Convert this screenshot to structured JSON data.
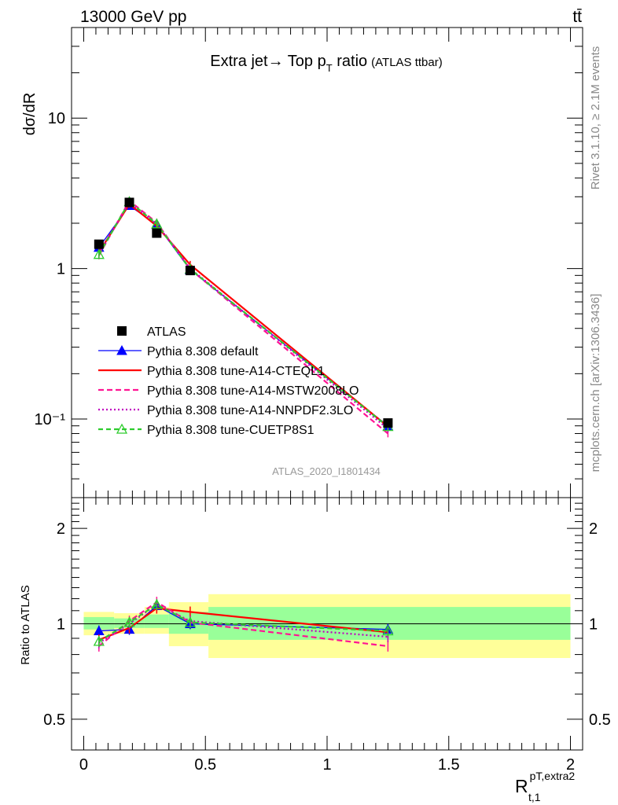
{
  "header": {
    "energy_label": "13000 GeV pp",
    "process_label": "tt̄",
    "rivet_label": "Rivet 3.1.10, ≥ 2.1M events",
    "mcplots_label": "mcplots.cern.ch [arXiv:1306.3436]",
    "analysis_id": "ATLAS_2020_I1801434"
  },
  "chart_data": [
    {
      "type": "line",
      "title": "Extra jet→ Top p",
      "title_sub": "T",
      "title_tail": " ratio",
      "title_note": "(ATLAS ttbar)",
      "ylabel": "dσ/dR",
      "y_scale": "log",
      "ylim": [
        0.03,
        40
      ],
      "xlim": [
        -0.05,
        2.05
      ],
      "y_ticks": [
        {
          "value": 10,
          "label": "10"
        },
        {
          "value": 1,
          "label": "1"
        },
        {
          "value": 0.1,
          "label": "10⁻¹"
        }
      ],
      "x": [
        0.0625,
        0.1875,
        0.3,
        0.4375,
        1.25
      ],
      "data": {
        "name": "ATLAS",
        "color": "#000000",
        "values": [
          1.45,
          2.75,
          1.72,
          0.97,
          0.094
        ]
      },
      "series": [
        {
          "name": "Pythia 8.308 default",
          "color": "#0000ff",
          "dash": "",
          "marker": "triangle-filled",
          "values": [
            1.38,
            2.62,
            1.96,
            0.98,
            0.09
          ]
        },
        {
          "name": "Pythia 8.308 tune-A14-CTEQL1",
          "color": "#ff0000",
          "dash": "",
          "marker": "none",
          "values": [
            1.28,
            2.68,
            1.92,
            1.06,
            0.089
          ]
        },
        {
          "name": "Pythia 8.308 tune-A14-MSTW2008LO",
          "color": "#ff1493",
          "dash": "7,4",
          "marker": "none",
          "values": [
            1.22,
            2.82,
            2.02,
            0.99,
            0.08
          ]
        },
        {
          "name": "Pythia 8.308 tune-A14-NNPDF2.3LO",
          "color": "#c000c0",
          "dash": "2,3",
          "marker": "none",
          "values": [
            1.25,
            2.75,
            1.98,
            1.0,
            0.086
          ]
        },
        {
          "name": "Pythia 8.308 tune-CUETP8S1",
          "color": "#2ecc2e",
          "dash": "6,4",
          "marker": "triangle-open",
          "values": [
            1.24,
            2.78,
            1.98,
            0.99,
            0.089
          ]
        }
      ]
    },
    {
      "type": "line",
      "title": "",
      "ylabel": "Ratio to ATLAS",
      "xlabel": "R",
      "xlabel_sup": "pT,extra2",
      "xlabel_sub": "t,1",
      "y_scale": "log",
      "ylim": [
        0.4,
        2.5
      ],
      "xlim": [
        -0.05,
        2.05
      ],
      "y_ticks": [
        {
          "value": 2,
          "label": "2"
        },
        {
          "value": 1,
          "label": "1"
        },
        {
          "value": 0.5,
          "label": "0.5"
        }
      ],
      "x_ticks": [
        {
          "value": 0,
          "label": "0"
        },
        {
          "value": 0.5,
          "label": "0.5"
        },
        {
          "value": 1,
          "label": "1"
        },
        {
          "value": 1.5,
          "label": "1.5"
        },
        {
          "value": 2,
          "label": "2"
        }
      ],
      "bands": [
        {
          "x0": 0.0,
          "x1": 0.125,
          "yellow": [
            0.92,
            1.09
          ],
          "green": [
            0.96,
            1.05
          ]
        },
        {
          "x0": 0.125,
          "x1": 0.25,
          "yellow": [
            0.93,
            1.08
          ],
          "green": [
            0.97,
            1.04
          ]
        },
        {
          "x0": 0.25,
          "x1": 0.35,
          "yellow": [
            0.93,
            1.13
          ],
          "green": [
            0.97,
            1.07
          ]
        },
        {
          "x0": 0.35,
          "x1": 0.5125,
          "yellow": [
            0.85,
            1.17
          ],
          "green": [
            0.93,
            1.09
          ]
        },
        {
          "x0": 0.5125,
          "x1": 2.0,
          "yellow": [
            0.78,
            1.24
          ],
          "green": [
            0.89,
            1.13
          ]
        }
      ],
      "x": [
        0.0625,
        0.1875,
        0.3,
        0.4375,
        1.25
      ],
      "series": [
        {
          "name": "Pythia 8.308 default",
          "color": "#0000ff",
          "dash": "",
          "marker": "triangle-filled",
          "values": [
            0.95,
            0.96,
            1.14,
            1.0,
            0.96
          ]
        },
        {
          "name": "Pythia 8.308 tune-A14-CTEQL1",
          "color": "#ff0000",
          "dash": "",
          "marker": "none",
          "values": [
            0.89,
            0.97,
            1.12,
            1.09,
            0.94
          ]
        },
        {
          "name": "Pythia 8.308 tune-A14-MSTW2008LO",
          "color": "#ff1493",
          "dash": "7,4",
          "marker": "none",
          "values": [
            0.85,
            1.02,
            1.17,
            1.01,
            0.85
          ]
        },
        {
          "name": "Pythia 8.308 tune-A14-NNPDF2.3LO",
          "color": "#c000c0",
          "dash": "2,3",
          "marker": "none",
          "values": [
            0.87,
            1.0,
            1.15,
            1.02,
            0.91
          ]
        },
        {
          "name": "Pythia 8.308 tune-CUETP8S1",
          "color": "#2ecc2e",
          "dash": "6,4",
          "marker": "triangle-open",
          "values": [
            0.88,
            1.01,
            1.15,
            1.01,
            0.95
          ]
        }
      ]
    }
  ]
}
